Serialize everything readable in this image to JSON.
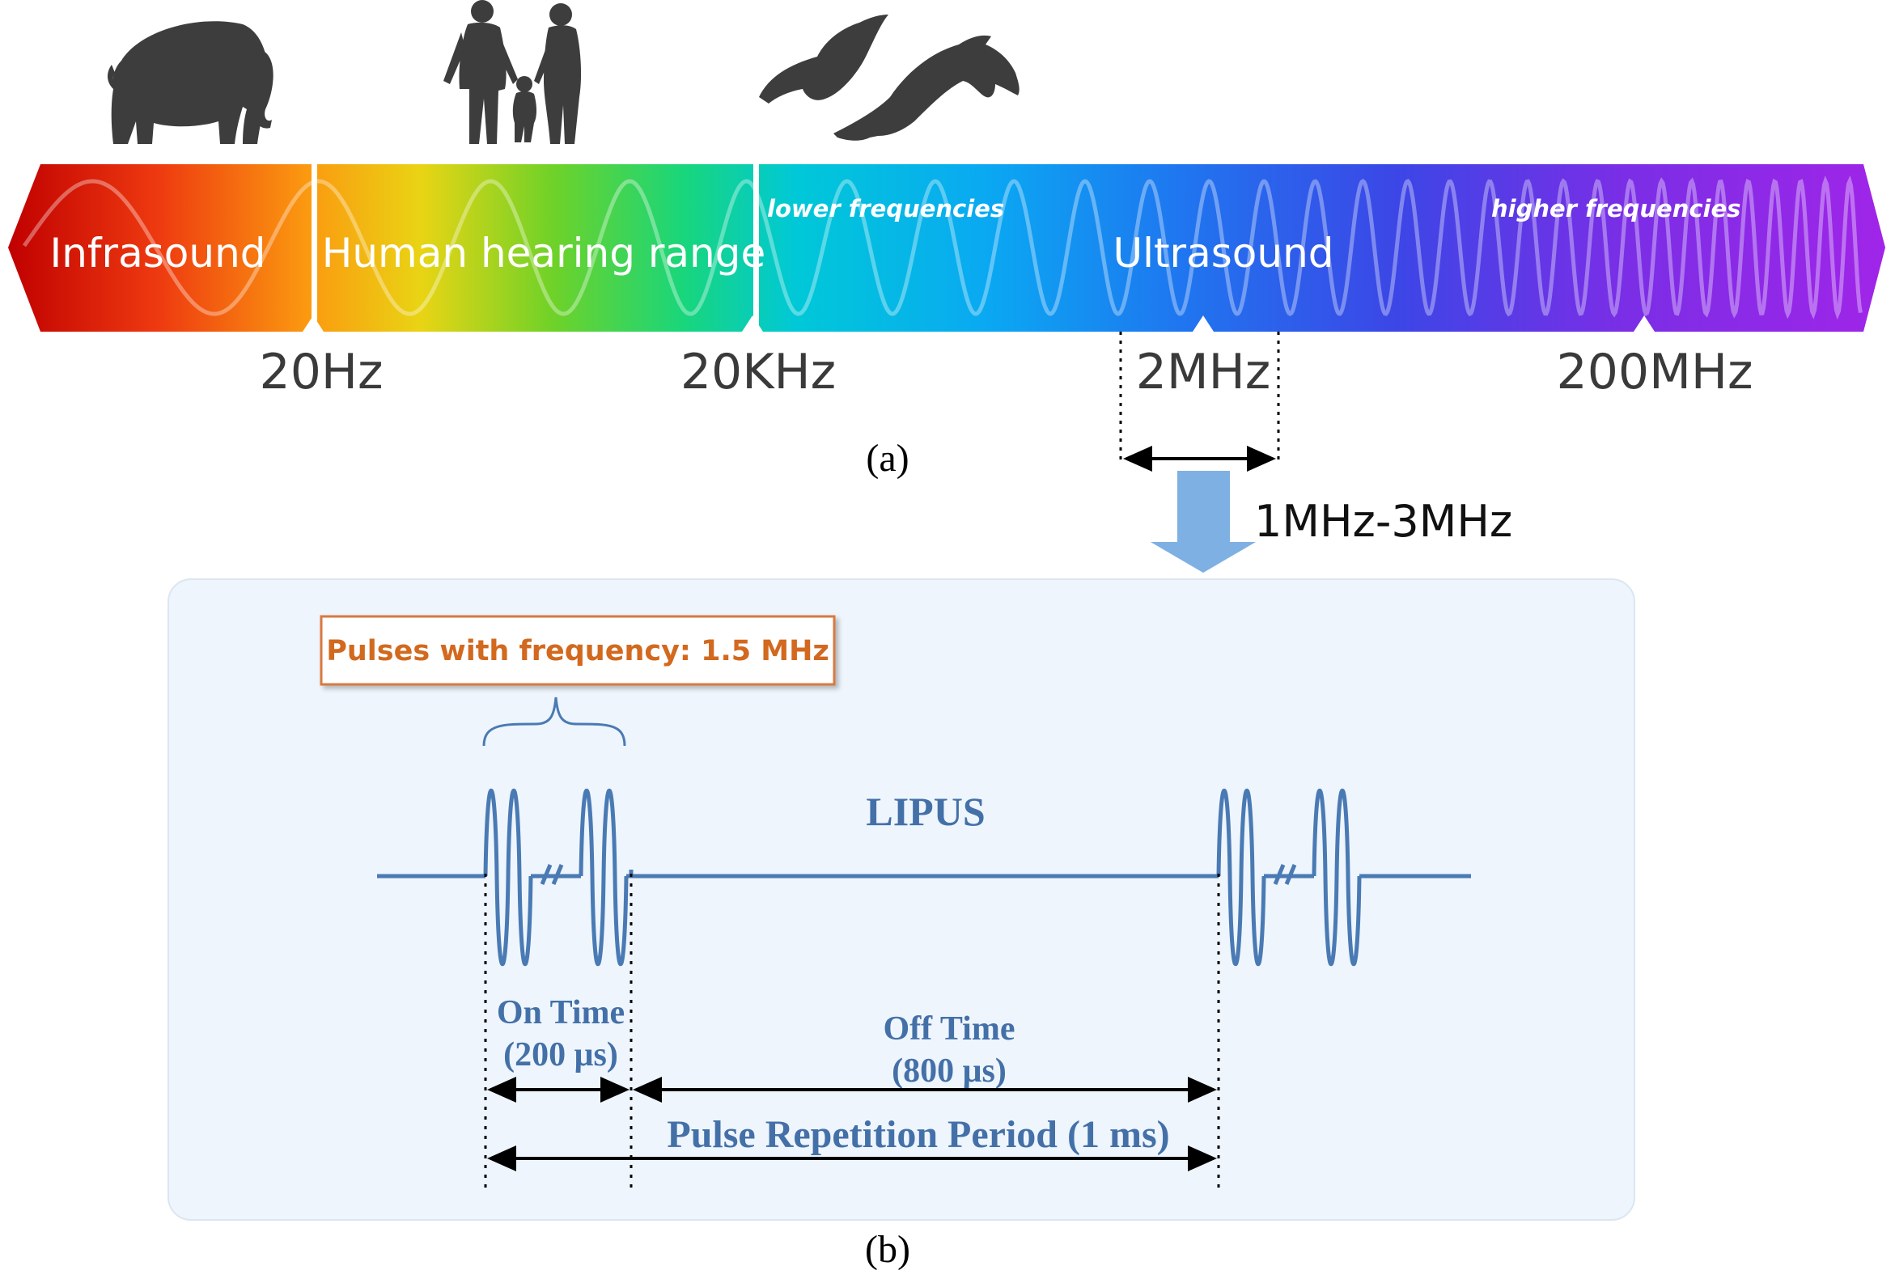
{
  "spectrum": {
    "bands": [
      {
        "label": "Infrasound"
      },
      {
        "label": "Human hearing range"
      },
      {
        "label": "Ultrasound"
      }
    ],
    "sublabels": {
      "low": "lower frequencies",
      "high": "higher frequencies"
    },
    "ticks": [
      "20Hz",
      "20KHz",
      "2MHz",
      "200MHz"
    ],
    "panel_label": "(a)",
    "animals": [
      "elephant-icon",
      "human-family-icon",
      "bat-icon",
      "dolphin-icon"
    ]
  },
  "range_label": "1MHz-3MHz",
  "lipus": {
    "callout": "Pulses with frequency: 1.5 MHz",
    "title": "LIPUS",
    "on_time_label": "On Time",
    "on_time_value": "(200 μs)",
    "off_time_label": "Off Time",
    "off_time_value": "(800 μs)",
    "period_label": "Pulse Repetition Period (1 ms)",
    "panel_label": "(b)"
  },
  "colors": {
    "wave": "#4a7ab4",
    "text_blue": "#4470a8",
    "callout_orange": "#d2691e",
    "panel_bg": "#eef5fc",
    "arrow_blue": "#7fb0e3",
    "silhouette": "#3d3d3d"
  }
}
